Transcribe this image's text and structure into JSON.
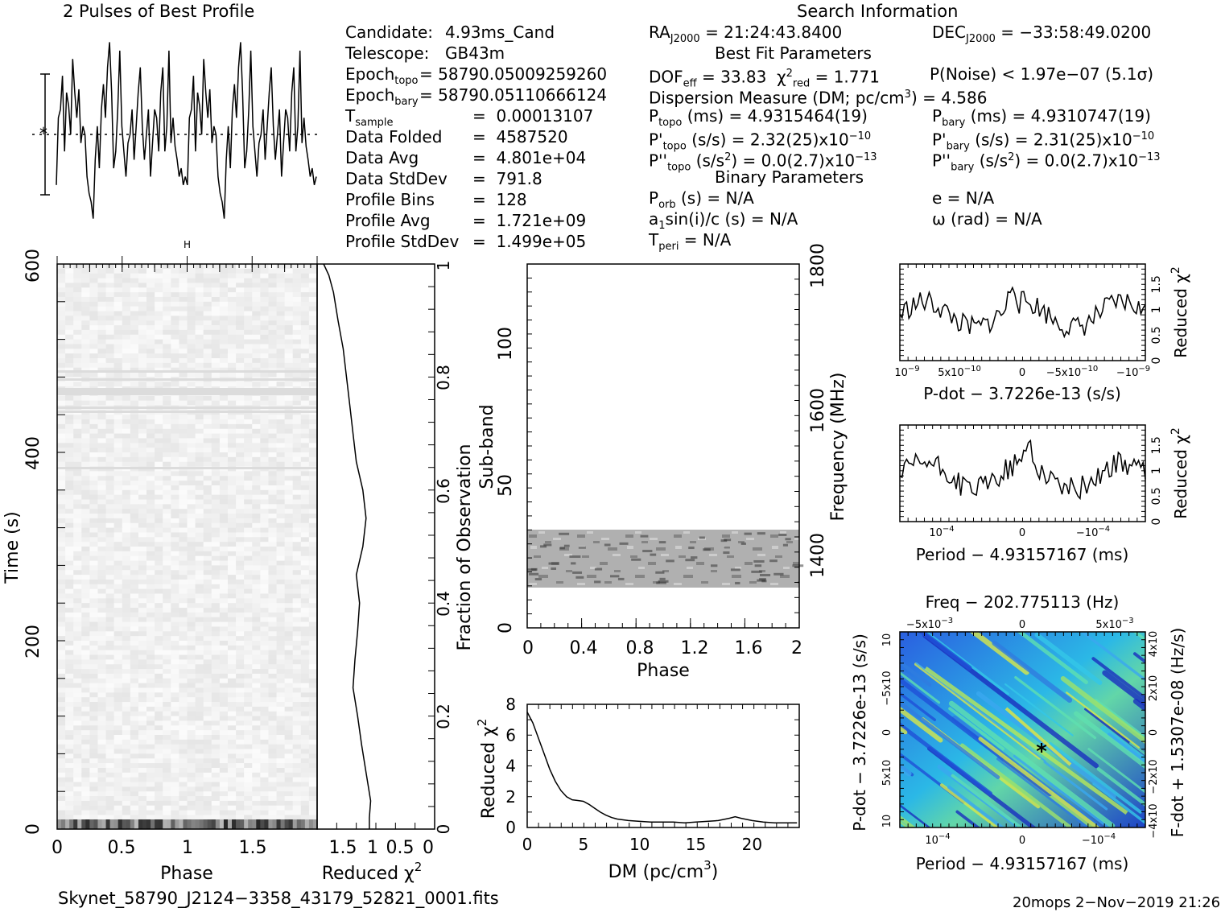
{
  "header": {
    "left_title": "2 Pulses of Best Profile",
    "search_title": "Search Information"
  },
  "params_left": [
    {
      "label": "Candidate:",
      "value": "4.93ms_Cand"
    },
    {
      "label": "Telescope:",
      "value": "GB43m"
    },
    {
      "label": "Epoch",
      "sub": "topo",
      "value": "= 58790.05009259260"
    },
    {
      "label": "Epoch",
      "sub": "bary",
      "value": "= 58790.05110666124"
    },
    {
      "label": "T",
      "sub": "sample",
      "value": "=  0.00013107"
    },
    {
      "label": "Data Folded",
      "value": "=  4587520"
    },
    {
      "label": "Data Avg",
      "value": "=  4.801e+04"
    },
    {
      "label": "Data StdDev",
      "value": "=  791.8"
    },
    {
      "label": "Profile Bins",
      "value": "=  128"
    },
    {
      "label": "Profile Avg",
      "value": "=  1.721e+09"
    },
    {
      "label": "Profile StdDev",
      "value": "=  1.499e+05"
    }
  ],
  "params_mid": {
    "ra_label": "RA",
    "ra_sub": "J2000",
    "ra_value": "= 21:24:43.8400",
    "dec_label": "DEC",
    "dec_sub": "J2000",
    "dec_value": "= −33:58:49.0200",
    "best_fit_title": "Best Fit Parameters",
    "dof": "DOF",
    "dof_sub": "eff",
    "dof_value": "= 33.83",
    "chi": "χ",
    "chi_sup": "2",
    "chi_sub": "red",
    "chi_value": "= 1.771",
    "pnoise": "P(Noise) < 1.97e−07   (5.1σ)",
    "dm": "Dispersion Measure (DM; pc/cm",
    "dm_sup": "3",
    "dm_value": ") = 4.586",
    "ptopo": "P",
    "ptopo_sub": "topo",
    "ptopo_value": "(ms) =  4.9315464(19)",
    "pbary": "P",
    "pbary_sub": "bary",
    "pbary_value": "(ms) =  4.9310747(19)",
    "pdtopo": "P'",
    "pdtopo_sub": "topo",
    "pdtopo_value": "(s/s) =  2.32(25)x10",
    "pdtopo_exp": "−10",
    "pdbary": "P'",
    "pdbary_sub": "bary",
    "pdbary_value": "(s/s) =  2.31(25)x10",
    "pdbary_exp": "−10",
    "pddtopo": "P''",
    "pddtopo_sub": "topo",
    "pddtopo_value": "(s/s",
    "pddtopo_value2": ") = 0.0(2.7)x10",
    "pddtopo_exp": "−13",
    "pddbary": "P''",
    "pddbary_sub": "bary",
    "pddbary_value": "(s/s",
    "pddbary_value2": ") = 0.0(2.7)x10",
    "pddbary_exp": "−13",
    "binary_title": "Binary Parameters",
    "porb": "P",
    "porb_sub": "orb",
    "porb_value": "(s) = N/A",
    "ecc": "e = N/A",
    "a1": "a",
    "a1_sub": "1",
    "a1_value": "sin(i)/c (s) = N/A",
    "omega": "ω (rad) = N/A",
    "tperi": "T",
    "tperi_sub": "peri",
    "tperi_value": "= N/A",
    "sup2": "2"
  },
  "footer": {
    "filename": "Skynet_58790_J2124−3358_43179_52821_0001.fits",
    "credit": "20mops   2−Nov−2019 21:26"
  },
  "chart_data": [
    {
      "type": "line",
      "panel": "pulse-profile",
      "title": "2 Pulses of Best Profile",
      "x_range": [
        0,
        2
      ],
      "y": [
        0.15,
        0.55,
        0.6,
        0.8,
        0.35,
        0.7,
        0.62,
        0.45,
        0.9,
        0.7,
        0.55,
        0.72,
        0.4,
        0.5,
        0.45,
        0.2,
        0.1,
        0.05,
        -0.05,
        0.3,
        0.5,
        0.25,
        0.6,
        0.75,
        0.55,
        0.85,
        1.0,
        0.7,
        0.25,
        0.35,
        0.6,
        0.95,
        0.5,
        0.35,
        0.2,
        0.4,
        0.45,
        0.6,
        0.3,
        0.5,
        0.7,
        0.85,
        0.5,
        0.3,
        0.45,
        0.6,
        0.2,
        0.4,
        0.6,
        0.55,
        0.35,
        0.7,
        0.85,
        0.35,
        0.5,
        0.95,
        0.4,
        0.55,
        0.38,
        0.3,
        0.2,
        0.25,
        0.15,
        0.2,
        0.15,
        0.55,
        0.6,
        0.8,
        0.35,
        0.7,
        0.62,
        0.45,
        0.9,
        0.7,
        0.55,
        0.72,
        0.4,
        0.5,
        0.45,
        0.2,
        0.1,
        0.05,
        -0.05,
        0.3,
        0.5,
        0.25,
        0.6,
        0.75,
        0.55,
        0.85,
        1.0,
        0.7,
        0.25,
        0.35,
        0.6,
        0.95,
        0.5,
        0.35,
        0.2,
        0.4,
        0.45,
        0.6,
        0.3,
        0.5,
        0.7,
        0.85,
        0.5,
        0.3,
        0.45,
        0.6,
        0.2,
        0.4,
        0.6,
        0.55,
        0.35,
        0.7,
        0.85,
        0.35,
        0.5,
        0.95,
        0.4,
        0.55,
        0.38,
        0.3,
        0.2,
        0.25,
        0.15,
        0.2
      ]
    },
    {
      "type": "heatmap",
      "panel": "time-phase",
      "xlabel": "Phase",
      "ylabel": "Time (s)",
      "x_ticks": [
        "0",
        "0.5",
        "1",
        "1.5"
      ],
      "y_ticks": [
        "0",
        "200",
        "400",
        "600"
      ],
      "xlim": [
        0,
        2
      ],
      "ylim": [
        0,
        600
      ],
      "right_axis_label": "Fraction of Observation",
      "right_ticks": [
        "0",
        "0.2",
        "0.4",
        "0.6",
        "0.8",
        "1"
      ]
    },
    {
      "type": "line",
      "panel": "reduced-chi2-vs-time",
      "xlabel": "Reduced χ",
      "xlabel_sup": "2",
      "x_ticks": [
        "1.5",
        "1",
        "0.5",
        "0"
      ],
      "fraction": [
        0,
        0.02,
        0.05,
        0.1,
        0.15,
        0.2,
        0.25,
        0.3,
        0.35,
        0.4,
        0.45,
        0.5,
        0.55,
        0.6,
        0.65,
        0.7,
        0.75,
        0.8,
        0.85,
        0.9,
        0.95,
        0.98,
        1.0
      ],
      "chi2": [
        1.0,
        1.0,
        0.98,
        1.05,
        1.12,
        1.18,
        1.25,
        1.22,
        1.18,
        1.15,
        1.2,
        1.1,
        1.05,
        1.1,
        1.2,
        1.25,
        1.3,
        1.35,
        1.4,
        1.48,
        1.55,
        1.62,
        1.7
      ]
    },
    {
      "type": "heatmap",
      "panel": "subband-phase",
      "xlabel": "Phase",
      "ylabel": "Sub-band",
      "x_ticks": [
        "0",
        "0.4",
        "0.8",
        "1.2",
        "1.6",
        "2"
      ],
      "y_ticks": [
        "0",
        "50",
        "100"
      ],
      "right_axis_label": "Frequency (MHz)",
      "right_ticks": [
        "1400",
        "1600",
        "1800"
      ],
      "xlim": [
        0,
        2
      ],
      "ylim": [
        0,
        128
      ],
      "band_subbands": [
        14,
        35
      ]
    },
    {
      "type": "line",
      "panel": "dm-curve",
      "xlabel": "DM (pc/cm",
      "xlabel_sup": "3",
      "xlabel_end": ")",
      "ylabel": "Reduced χ",
      "ylabel_sup": "2",
      "x_ticks": [
        "0",
        "5",
        "10",
        "15",
        "20"
      ],
      "y_ticks": [
        "0",
        "2",
        "4",
        "6",
        "8"
      ],
      "xlim": [
        0,
        24.2
      ],
      "ylim": [
        0,
        8
      ],
      "x": [
        0,
        0.5,
        1,
        1.5,
        2,
        2.5,
        3,
        3.5,
        4,
        4.5,
        5,
        5.5,
        6,
        6.5,
        7,
        7.5,
        8,
        9,
        10,
        11,
        12,
        13,
        14,
        15,
        16,
        17,
        18,
        18.5,
        19,
        20,
        21,
        22,
        23,
        24
      ],
      "y": [
        7.5,
        6.8,
        5.8,
        4.8,
        3.8,
        3.0,
        2.4,
        2.0,
        1.8,
        1.75,
        1.7,
        1.5,
        1.25,
        1.0,
        0.8,
        0.65,
        0.55,
        0.45,
        0.4,
        0.35,
        0.35,
        0.35,
        0.3,
        0.35,
        0.4,
        0.45,
        0.6,
        0.7,
        0.6,
        0.45,
        0.35,
        0.3,
        0.3,
        0.3
      ]
    },
    {
      "type": "line",
      "panel": "pdot-chi2",
      "xlabel": "P-dot − 3.7226e-13 (s/s)",
      "ylabel": "Reduced χ",
      "ylabel_sup": "2",
      "x_ticks": [
        "10",
        "5x10",
        "0",
        "−5x10",
        "−10"
      ],
      "x_tick_exp": [
        "−9",
        "−10",
        "",
        "−10",
        "−9"
      ],
      "y_ticks": [
        "0",
        "0.5",
        "1",
        "1.5"
      ],
      "ylim": [
        0,
        1.9
      ]
    },
    {
      "type": "line",
      "panel": "period-chi2",
      "xlabel": "Period − 4.93157167 (ms)",
      "ylabel": "Reduced χ",
      "ylabel_sup": "2",
      "x_ticks": [
        "10",
        "0",
        "−10"
      ],
      "x_tick_exp": [
        "−4",
        "",
        "−4"
      ],
      "y_ticks": [
        "0",
        "0.5",
        "1",
        "1.5"
      ],
      "ylim": [
        0,
        1.9
      ]
    },
    {
      "type": "heatmap",
      "panel": "period-pdot",
      "top_label": "Freq − 202.775113 (Hz)",
      "top_ticks": [
        "−5x10",
        "0",
        "5x10"
      ],
      "top_tick_exp": [
        "−3",
        "",
        "−3"
      ],
      "xlabel": "Period − 4.93157167 (ms)",
      "x_ticks": [
        "10",
        "0",
        "−10"
      ],
      "x_tick_exp": [
        "−4",
        "",
        "−4"
      ],
      "ylabel": "P-dot − 3.7226e-13 (s/s)",
      "y_ticks": [
        "10",
        "5x10",
        "0",
        "−5x10",
        "10"
      ],
      "right_label": "F-dot + 1.5307e-08 (Hz/s)",
      "right_ticks": [
        "−4x10",
        "−2x10",
        "0",
        "2x10",
        "4x10"
      ]
    }
  ]
}
